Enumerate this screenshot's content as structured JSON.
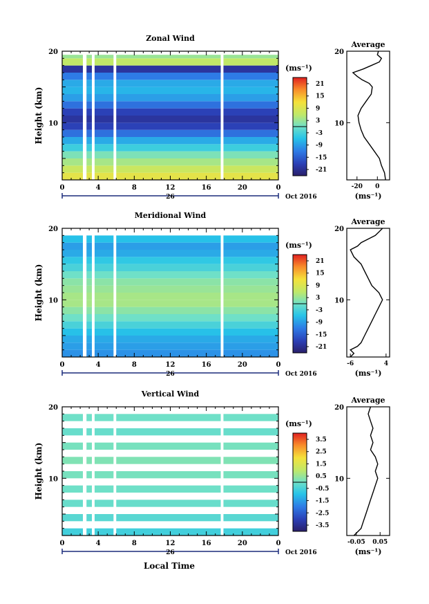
{
  "figure": {
    "xlabel_bottom": "Local Time",
    "date_day_label": "26",
    "date_month_label": "Oct 2016"
  },
  "chart_data": [
    {
      "type": "heatmap",
      "title": "Zonal Wind",
      "ylabel": "Height (km)",
      "xlim": [
        0,
        24
      ],
      "ylim": [
        2,
        20
      ],
      "x_ticks": [
        "0",
        "4",
        "8",
        "12",
        "16",
        "20",
        "0"
      ],
      "y_ticks": [
        "20",
        "10"
      ],
      "unit_label": "(ms⁻¹)",
      "colorbar_ticks": [
        "21",
        "15",
        "9",
        "3",
        "-3",
        "-9",
        "-15",
        "-21"
      ],
      "colorbar_range": [
        -24,
        24
      ],
      "gaps_hours": [
        [
          2.3,
          2.7
        ],
        [
          3.3,
          3.6
        ],
        [
          5.7,
          6.0
        ],
        [
          17.6,
          17.9
        ]
      ],
      "profile_rows": [
        {
          "h": 2.5,
          "v": 10
        },
        {
          "h": 3.5,
          "v": 7
        },
        {
          "h": 4.5,
          "v": 4
        },
        {
          "h": 5.5,
          "v": 1
        },
        {
          "h": 6.5,
          "v": -4
        },
        {
          "h": 7.5,
          "v": -8
        },
        {
          "h": 8.5,
          "v": -13
        },
        {
          "h": 9.5,
          "v": -18
        },
        {
          "h": 10.5,
          "v": -20
        },
        {
          "h": 11.5,
          "v": -18
        },
        {
          "h": 12.5,
          "v": -13
        },
        {
          "h": 13.5,
          "v": -9
        },
        {
          "h": 14.5,
          "v": -7
        },
        {
          "h": 15.5,
          "v": -8
        },
        {
          "h": 16.5,
          "v": -12
        },
        {
          "h": 17.5,
          "v": -20
        },
        {
          "h": 18.5,
          "v": 6
        },
        {
          "h": 19.5,
          "v": 3
        }
      ],
      "data_top_km": 19.5,
      "average": {
        "title": "Average",
        "xlabel": "(ms⁻¹)",
        "xlim": [
          -30,
          12
        ],
        "x_ticks": [
          {
            "v": -20,
            "label": "-20"
          },
          {
            "v": 0,
            "label": "0"
          }
        ],
        "y_ticks": [
          "20",
          "10"
        ],
        "height_km": [
          2,
          3,
          4,
          5,
          6,
          7,
          8,
          9,
          10,
          11,
          12,
          13,
          14,
          15,
          15.5,
          16,
          16.5,
          17,
          17.5,
          18,
          18.5,
          19,
          19.5,
          20
        ],
        "values": [
          8,
          7,
          4,
          2,
          -3,
          -8,
          -13,
          -16,
          -18,
          -19,
          -16,
          -11,
          -6,
          -5,
          -8,
          -15,
          -20,
          -24,
          -14,
          -6,
          2,
          4,
          0,
          1
        ]
      }
    },
    {
      "type": "heatmap",
      "title": "Meridional Wind",
      "ylabel": "Height (km)",
      "xlim": [
        0,
        24
      ],
      "ylim": [
        2,
        20
      ],
      "x_ticks": [
        "0",
        "4",
        "8",
        "12",
        "16",
        "20",
        "0"
      ],
      "y_ticks": [
        "20",
        "10"
      ],
      "unit_label": "(ms⁻¹)",
      "colorbar_ticks": [
        "21",
        "15",
        "9",
        "3",
        "-3",
        "-9",
        "-15",
        "-21"
      ],
      "colorbar_range": [
        -24,
        24
      ],
      "gaps_hours": [
        [
          2.3,
          2.7
        ],
        [
          3.3,
          3.6
        ],
        [
          5.7,
          6.0
        ],
        [
          17.6,
          17.9
        ]
      ],
      "profile_rows": [
        {
          "h": 2.5,
          "v": -10
        },
        {
          "h": 3.5,
          "v": -9
        },
        {
          "h": 4.5,
          "v": -8
        },
        {
          "h": 5.5,
          "v": -6
        },
        {
          "h": 6.5,
          "v": -3
        },
        {
          "h": 7.5,
          "v": 0
        },
        {
          "h": 8.5,
          "v": 2
        },
        {
          "h": 9.5,
          "v": 4
        },
        {
          "h": 10.5,
          "v": 4
        },
        {
          "h": 11.5,
          "v": 3
        },
        {
          "h": 12.5,
          "v": 2
        },
        {
          "h": 13.5,
          "v": 0
        },
        {
          "h": 14.5,
          "v": -3
        },
        {
          "h": 15.5,
          "v": -5
        },
        {
          "h": 16.5,
          "v": -8
        },
        {
          "h": 17.5,
          "v": -9
        },
        {
          "h": 18.5,
          "v": -6
        }
      ],
      "data_top_km": 19,
      "average": {
        "title": "Average",
        "xlabel": "(ms⁻¹)",
        "xlim": [
          -7,
          5
        ],
        "x_ticks": [
          {
            "v": -6,
            "label": "-6"
          },
          {
            "v": 4,
            "label": "4"
          }
        ],
        "y_ticks": [
          "20",
          "10"
        ],
        "height_km": [
          2,
          2.5,
          3,
          3.5,
          4,
          5,
          6,
          7,
          8,
          9,
          10,
          11,
          12,
          13,
          14,
          15,
          16,
          17,
          17.5,
          18,
          18.5,
          19,
          19.5,
          20
        ],
        "values": [
          -6,
          -5,
          -6,
          -4,
          -3,
          -2,
          -1,
          0,
          1,
          2,
          3,
          2,
          0,
          -1,
          -2,
          -3,
          -5,
          -6,
          -4,
          -3,
          -1,
          1,
          2,
          3
        ]
      }
    },
    {
      "type": "heatmap",
      "title": "Vertical Wind",
      "ylabel": "Height (km)",
      "xlim": [
        0,
        24
      ],
      "ylim": [
        2,
        20
      ],
      "x_ticks": [
        "0",
        "4",
        "8",
        "12",
        "16",
        "20",
        "0"
      ],
      "y_ticks": [
        "20",
        "10"
      ],
      "unit_label": "(ms⁻¹)",
      "colorbar_ticks": [
        "3.5",
        "2.5",
        "1.5",
        "0.5",
        "-0.5",
        "-1.5",
        "-2.5",
        "-3.5"
      ],
      "colorbar_range": [
        -4,
        4
      ],
      "gaps_hours": [
        [
          2.3,
          2.7
        ],
        [
          3.3,
          3.6
        ],
        [
          5.7,
          6.0
        ],
        [
          17.6,
          17.9
        ]
      ],
      "profile_rows": [
        {
          "h": 2.5,
          "v": -0.6
        },
        {
          "h": 4.5,
          "v": -0.3
        },
        {
          "h": 6.5,
          "v": -0.1
        },
        {
          "h": 8.5,
          "v": 0.0
        },
        {
          "h": 10.5,
          "v": 0.1
        },
        {
          "h": 12.5,
          "v": 0.2
        },
        {
          "h": 14.5,
          "v": 0.1
        },
        {
          "h": 16.5,
          "v": -0.1
        },
        {
          "h": 18.5,
          "v": 0.0
        }
      ],
      "data_top_km": 20,
      "average": {
        "title": "Average",
        "xlabel": "(ms⁻¹)",
        "xlim": [
          -0.09,
          0.09
        ],
        "x_ticks": [
          {
            "v": -0.05,
            "label": "-0.05"
          },
          {
            "v": 0.05,
            "label": "0.05"
          }
        ],
        "y_ticks": [
          "20",
          "10"
        ],
        "height_km": [
          2,
          3,
          4,
          5,
          6,
          7,
          8,
          9,
          10,
          11,
          12,
          13,
          14,
          15,
          16,
          17,
          18,
          19,
          20
        ],
        "values": [
          -0.06,
          -0.03,
          -0.02,
          -0.01,
          0.0,
          0.01,
          0.02,
          0.03,
          0.04,
          0.03,
          0.04,
          0.03,
          0.01,
          0.02,
          0.01,
          0.02,
          0.01,
          0.0,
          0.01
        ]
      }
    }
  ]
}
